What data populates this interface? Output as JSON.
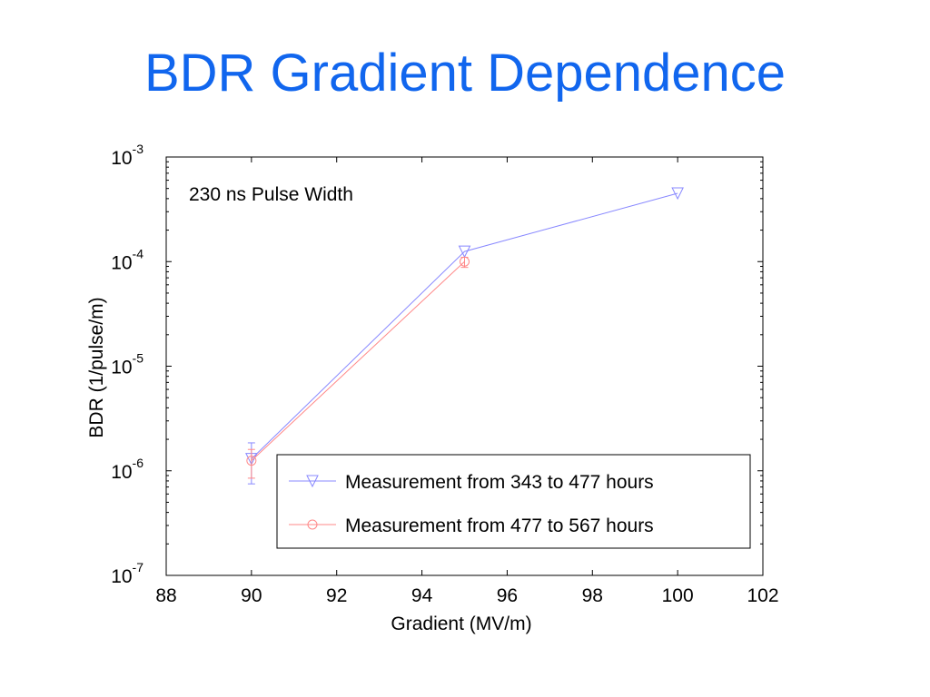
{
  "slide": {
    "title": "BDR Gradient Dependence"
  },
  "chart_data": {
    "type": "line",
    "xlabel": "Gradient (MV/m)",
    "ylabel": "BDR (1/pulse/m)",
    "xlim": [
      88,
      102
    ],
    "ylim": [
      1e-07,
      0.001
    ],
    "yscale": "log",
    "x_ticks": [
      "88",
      "90",
      "92",
      "94",
      "96",
      "98",
      "100",
      "102"
    ],
    "y_ticks": [
      {
        "base": "10",
        "exp": "-7",
        "value": 1e-07
      },
      {
        "base": "10",
        "exp": "-6",
        "value": 1e-06
      },
      {
        "base": "10",
        "exp": "-5",
        "value": 1e-05
      },
      {
        "base": "10",
        "exp": "-4",
        "value": 0.0001
      },
      {
        "base": "10",
        "exp": "-3",
        "value": 0.001
      }
    ],
    "annotation": "230 ns Pulse Width",
    "legend_placement": "bottom-right",
    "grid": false,
    "series": [
      {
        "name": "Measurement from 343 to 477 hours",
        "color": "#8888ff",
        "marker": "triangle-down",
        "x": [
          90,
          95,
          100
        ],
        "y": [
          1.3e-06,
          0.000125,
          0.00045
        ],
        "err_low": [
          7.5e-07,
          null,
          null
        ],
        "err_high": [
          1.85e-06,
          null,
          null
        ]
      },
      {
        "name": "Measurement from 477 to 567 hours",
        "color": "#ff8888",
        "marker": "circle",
        "x": [
          90,
          95
        ],
        "y": [
          1.25e-06,
          0.0001
        ],
        "err_low": [
          8.5e-07,
          8.8e-05
        ],
        "err_high": [
          1.6e-06,
          0.00011
        ]
      }
    ]
  }
}
